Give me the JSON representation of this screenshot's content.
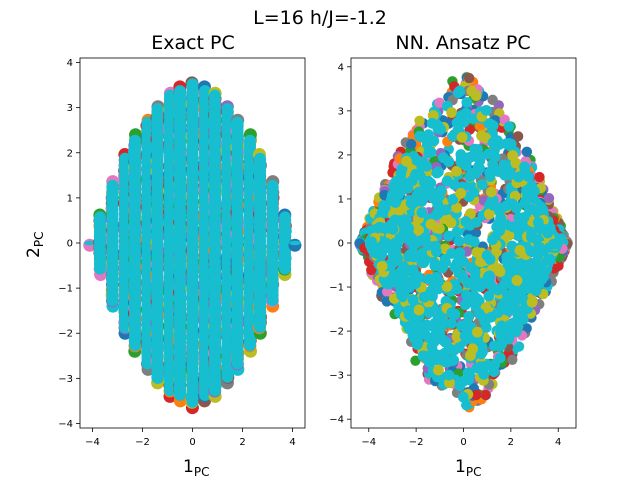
{
  "figure": {
    "suptitle": "L=16 h/J=-1.2"
  },
  "chart_data": [
    {
      "type": "scatter",
      "title": "Exact PC",
      "xlabel_main": "1",
      "xlabel_sub": "PC",
      "ylabel_main": "2",
      "ylabel_sub": "PC",
      "xlim": [
        -4.5,
        4.5
      ],
      "ylim": [
        -4.1,
        4.1
      ],
      "xticks": [
        -4,
        -2,
        0,
        2,
        4
      ],
      "yticks": [
        -4,
        -3,
        -2,
        -1,
        0,
        1,
        2,
        3,
        4
      ],
      "grid": false,
      "pattern": "vertical-stripes",
      "description_colors": [
        "#1f77b4",
        "#ff7f0e",
        "#2ca02c",
        "#d62728",
        "#9467bd",
        "#8c564b",
        "#e377c2",
        "#7f7f7f",
        "#bcbd22",
        "#17becf"
      ],
      "dominant_color": "#17becf",
      "stripes": [
        {
          "x": -4.1,
          "ymin": -0.05,
          "ymax": 0.05
        },
        {
          "x": -3.7,
          "ymin": -0.7,
          "ymax": 0.7
        },
        {
          "x": -3.2,
          "ymin": -1.4,
          "ymax": 1.4
        },
        {
          "x": -2.7,
          "ymin": -2.0,
          "ymax": 2.0
        },
        {
          "x": -2.3,
          "ymin": -2.4,
          "ymax": 2.4
        },
        {
          "x": -1.8,
          "ymin": -2.8,
          "ymax": 2.8
        },
        {
          "x": -1.4,
          "ymin": -3.1,
          "ymax": 3.1
        },
        {
          "x": -0.9,
          "ymin": -3.4,
          "ymax": 3.4
        },
        {
          "x": -0.5,
          "ymin": -3.5,
          "ymax": 3.5
        },
        {
          "x": 0.0,
          "ymin": -3.65,
          "ymax": 3.65
        },
        {
          "x": 0.5,
          "ymin": -3.5,
          "ymax": 3.5
        },
        {
          "x": 0.9,
          "ymin": -3.4,
          "ymax": 3.4
        },
        {
          "x": 1.4,
          "ymin": -3.1,
          "ymax": 3.1
        },
        {
          "x": 1.8,
          "ymin": -2.8,
          "ymax": 2.8
        },
        {
          "x": 2.3,
          "ymin": -2.4,
          "ymax": 2.4
        },
        {
          "x": 2.7,
          "ymin": -2.0,
          "ymax": 2.0
        },
        {
          "x": 3.2,
          "ymin": -1.4,
          "ymax": 1.4
        },
        {
          "x": 3.7,
          "ymin": -0.7,
          "ymax": 0.7
        },
        {
          "x": 4.1,
          "ymin": -0.05,
          "ymax": 0.05
        }
      ]
    },
    {
      "type": "scatter",
      "title": "NN. Ansatz PC",
      "xlabel_main": "1",
      "xlabel_sub": "PC",
      "xlim": [
        -4.75,
        4.75
      ],
      "ylim": [
        -4.2,
        4.2
      ],
      "xticks": [
        -4,
        -2,
        0,
        2,
        4
      ],
      "yticks": [
        -4,
        -3,
        -2,
        -1,
        0,
        1,
        2,
        3,
        4
      ],
      "grid": false,
      "pattern": "diamond-cloud",
      "description_colors": [
        "#1f77b4",
        "#ff7f0e",
        "#2ca02c",
        "#d62728",
        "#9467bd",
        "#8c564b",
        "#e377c2",
        "#7f7f7f",
        "#bcbd22",
        "#17becf"
      ],
      "dominant_color": "#17becf",
      "envelope": {
        "x_extent": 4.4,
        "y_extent": 3.8
      }
    }
  ]
}
